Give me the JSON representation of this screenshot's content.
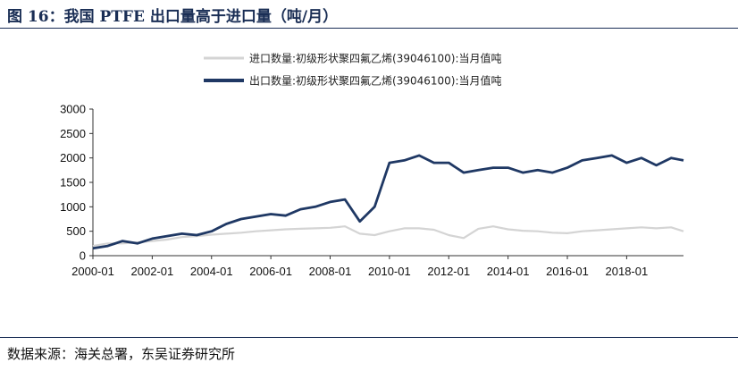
{
  "figure": {
    "title": "图 16：我国 PTFE 出口量高于进口量（吨/月）",
    "source": "数据来源：海关总署，东吴证券研究所"
  },
  "chart_data": {
    "type": "line",
    "title": "",
    "xlabel": "",
    "ylabel": "",
    "x_tick_labels": [
      "2000-01",
      "2002-01",
      "2004-01",
      "2006-01",
      "2008-01",
      "2010-01",
      "2012-01",
      "2014-01",
      "2016-01",
      "2018-01"
    ],
    "y_ticks": [
      0,
      500,
      1000,
      1500,
      2000,
      2500,
      3000
    ],
    "ylim": [
      0,
      3000
    ],
    "x_range": [
      "2000-01",
      "2019-12"
    ],
    "grid": false,
    "legend_position": "top",
    "series": [
      {
        "name": "进口数量:初级形状聚四氟乙烯(39046100):当月值吨",
        "color": "#d4d4d4",
        "x": [
          "2000-01",
          "2000-07",
          "2001-01",
          "2001-07",
          "2002-01",
          "2002-07",
          "2003-01",
          "2003-07",
          "2004-01",
          "2004-07",
          "2005-01",
          "2005-07",
          "2006-01",
          "2006-07",
          "2007-01",
          "2007-07",
          "2008-01",
          "2008-07",
          "2009-01",
          "2009-07",
          "2010-01",
          "2010-07",
          "2011-01",
          "2011-07",
          "2012-01",
          "2012-07",
          "2013-01",
          "2013-07",
          "2014-01",
          "2014-07",
          "2015-01",
          "2015-07",
          "2016-01",
          "2016-07",
          "2017-01",
          "2017-07",
          "2018-01",
          "2018-07",
          "2019-01",
          "2019-07",
          "2019-12"
        ],
        "values": [
          200,
          250,
          250,
          270,
          300,
          330,
          380,
          400,
          430,
          450,
          470,
          500,
          520,
          540,
          550,
          560,
          570,
          600,
          450,
          420,
          500,
          560,
          560,
          530,
          420,
          360,
          550,
          600,
          540,
          510,
          500,
          470,
          460,
          500,
          520,
          540,
          560,
          580,
          560,
          580,
          500
        ]
      },
      {
        "name": "出口数量:初级形状聚四氟乙烯(39046100):当月值吨",
        "color": "#1f3864",
        "x": [
          "2000-01",
          "2000-07",
          "2001-01",
          "2001-07",
          "2002-01",
          "2002-07",
          "2003-01",
          "2003-07",
          "2004-01",
          "2004-07",
          "2005-01",
          "2005-07",
          "2006-01",
          "2006-07",
          "2007-01",
          "2007-07",
          "2008-01",
          "2008-07",
          "2009-01",
          "2009-07",
          "2010-01",
          "2010-07",
          "2011-01",
          "2011-07",
          "2012-01",
          "2012-07",
          "2013-01",
          "2013-07",
          "2014-01",
          "2014-07",
          "2015-01",
          "2015-07",
          "2016-01",
          "2016-07",
          "2017-01",
          "2017-07",
          "2018-01",
          "2018-07",
          "2019-01",
          "2019-07",
          "2019-12"
        ],
        "values": [
          150,
          200,
          300,
          250,
          350,
          400,
          450,
          420,
          500,
          650,
          750,
          800,
          850,
          820,
          950,
          1000,
          1100,
          1150,
          700,
          1000,
          1900,
          1950,
          2050,
          1900,
          1900,
          1700,
          1750,
          1800,
          1800,
          1700,
          1750,
          1700,
          1800,
          1950,
          2000,
          2050,
          1900,
          2000,
          1850,
          2000,
          1950
        ]
      }
    ]
  }
}
